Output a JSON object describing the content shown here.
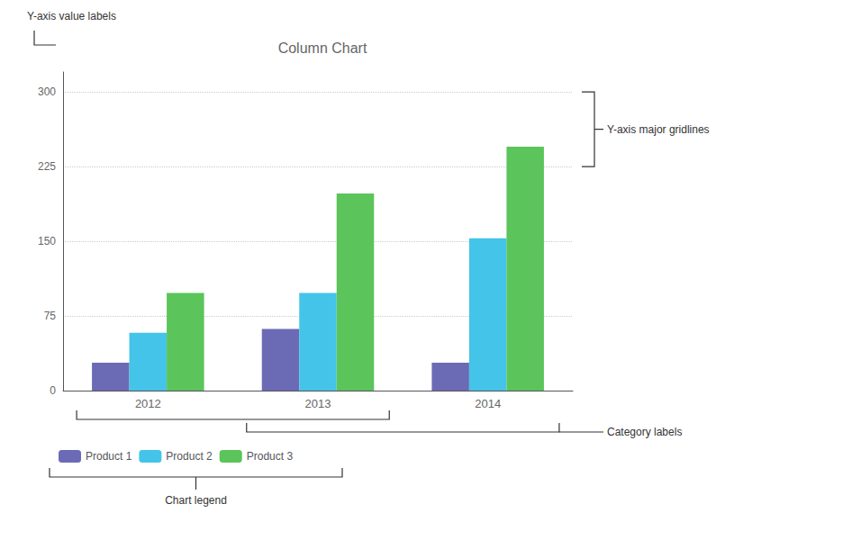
{
  "chart_data": {
    "type": "bar",
    "title": "Column Chart",
    "categories": [
      "2012",
      "2013",
      "2014"
    ],
    "series": [
      {
        "name": "Product 1",
        "color": "#6b6bb5",
        "values": [
          28,
          62,
          28
        ]
      },
      {
        "name": "Product 2",
        "color": "#44c4e8",
        "values": [
          58,
          98,
          153
        ]
      },
      {
        "name": "Product 3",
        "color": "#5bc45a",
        "values": [
          98,
          198,
          245
        ]
      }
    ],
    "ylim": [
      0,
      320
    ],
    "yticks": [
      0,
      75,
      150,
      225,
      300
    ],
    "grid": true,
    "legend": "bottom",
    "annotations": [
      "Y-axis value labels",
      "Y-axis major gridlines",
      "Category labels",
      "Chart legend"
    ]
  }
}
